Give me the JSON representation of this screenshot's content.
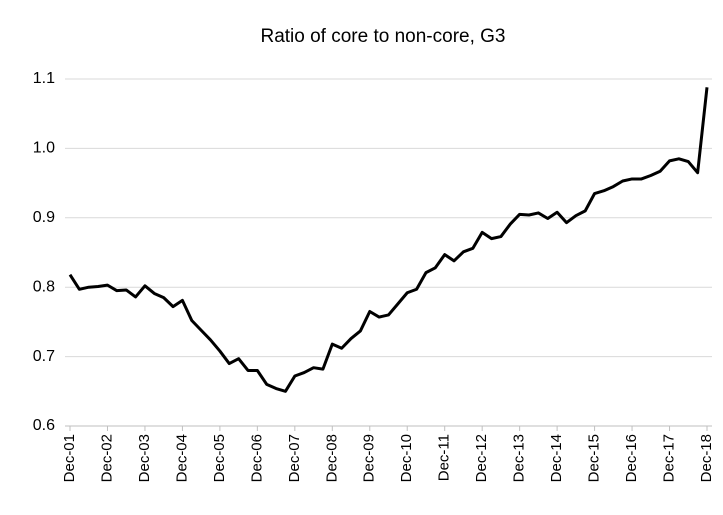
{
  "chart_data": {
    "type": "line",
    "title": "Ratio of core to non-core, G3",
    "categories": [
      "Dec-01",
      null,
      null,
      null,
      "Dec-02",
      null,
      null,
      null,
      "Dec-03",
      null,
      null,
      null,
      "Dec-04",
      null,
      null,
      null,
      "Dec-05",
      null,
      null,
      null,
      "Dec-06",
      null,
      null,
      null,
      "Dec-07",
      null,
      null,
      null,
      "Dec-08",
      null,
      null,
      null,
      "Dec-09",
      null,
      null,
      null,
      "Dec-10",
      null,
      null,
      null,
      "Dec-11",
      null,
      null,
      null,
      "Dec-12",
      null,
      null,
      null,
      "Dec-13",
      null,
      null,
      null,
      "Dec-14",
      null,
      null,
      null,
      "Dec-15",
      null,
      null,
      null,
      "Dec-16",
      null,
      null,
      null,
      "Dec-17",
      null,
      null,
      null,
      "Dec-18"
    ],
    "values": [
      0.818,
      0.797,
      0.8,
      0.801,
      0.803,
      0.795,
      0.796,
      0.786,
      0.802,
      0.791,
      0.785,
      0.772,
      0.781,
      0.752,
      0.738,
      0.724,
      0.708,
      0.69,
      0.697,
      0.68,
      0.68,
      0.66,
      0.654,
      0.65,
      0.672,
      0.677,
      0.684,
      0.682,
      0.718,
      0.712,
      0.726,
      0.737,
      0.765,
      0.757,
      0.76,
      0.776,
      0.792,
      0.797,
      0.821,
      0.828,
      0.847,
      0.838,
      0.851,
      0.856,
      0.879,
      0.87,
      0.873,
      0.891,
      0.905,
      0.904,
      0.907,
      0.899,
      0.908,
      0.893,
      0.903,
      0.91,
      0.935,
      0.939,
      0.945,
      0.953,
      0.956,
      0.956,
      0.961,
      0.967,
      0.982,
      0.985,
      0.981,
      0.965,
      1.088
    ],
    "color": "#000000",
    "ylim": [
      0.6,
      1.1
    ],
    "yticks": [
      0.6,
      0.7,
      0.8,
      0.9,
      {
        "value": 1,
        "label": "1.0"
      },
      1.1
    ],
    "grid": true
  }
}
